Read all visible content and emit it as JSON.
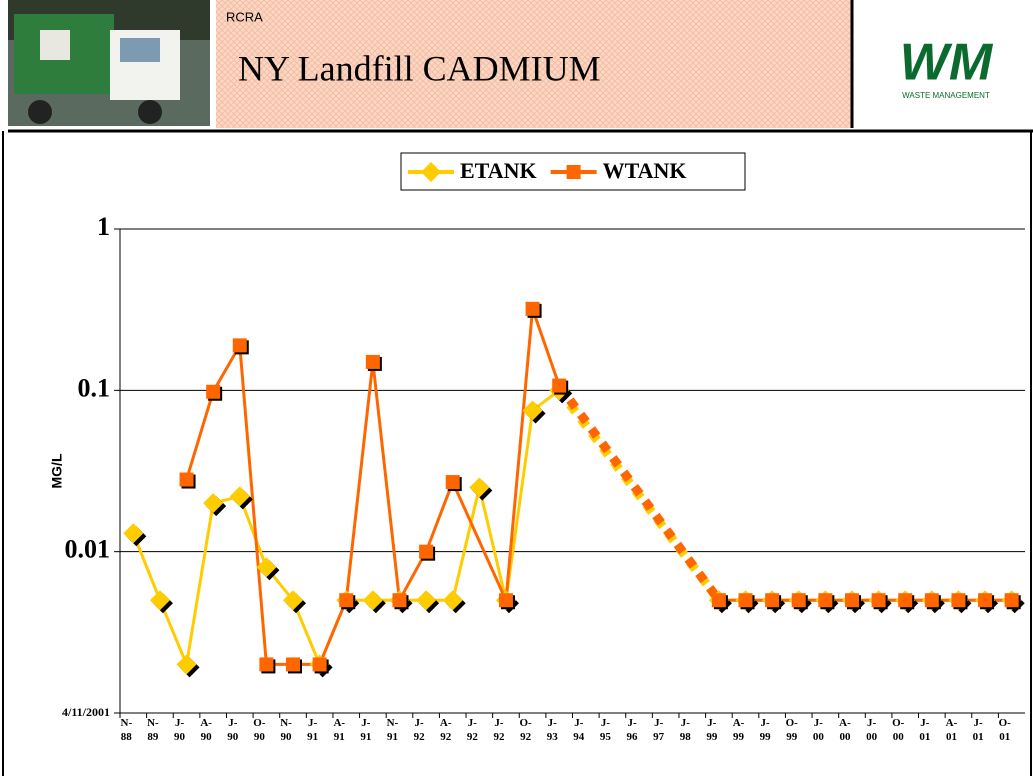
{
  "header": {
    "tag": "RCRA",
    "title": "NY Landfill CADMIUM",
    "logo_text": "WM",
    "logo_subtext": "WASTE MANAGEMENT"
  },
  "chart_data": {
    "type": "line",
    "y_label": "MG/L",
    "log_scale": true,
    "grid": true,
    "legend": "top",
    "categories": [
      "N-88",
      "N-89",
      "J-90",
      "A-90",
      "J-90",
      "O-90",
      "N-90",
      "J-91",
      "A-91",
      "J-91",
      "N-91",
      "J-92",
      "A-92",
      "J-92",
      "J-92",
      "O-92",
      "J-93",
      "J-94",
      "J-95",
      "J-96",
      "J-97",
      "J-98",
      "J-99",
      "A-99",
      "J-99",
      "O-99",
      "J-00",
      "A-00",
      "J-00",
      "O-00",
      "J-01",
      "A-01",
      "J-01",
      "O-01"
    ],
    "series": [
      {
        "name": "ETANK",
        "color": "#ffcc00",
        "marker": "diamond",
        "values": [
          0.013,
          0.005,
          0.002,
          0.02,
          0.022,
          0.008,
          0.005,
          0.002,
          0.005,
          0.005,
          0.005,
          0.005,
          0.005,
          0.025,
          0.005,
          0.075,
          0.1,
          null,
          null,
          null,
          null,
          null,
          0.005,
          0.005,
          0.005,
          0.005,
          0.005,
          0.005,
          0.005,
          0.005,
          0.005,
          0.005,
          0.005,
          0.005
        ]
      },
      {
        "name": "WTANK",
        "color": "#ff6600",
        "marker": "square",
        "values": [
          null,
          null,
          0.028,
          0.098,
          0.19,
          0.002,
          0.002,
          0.002,
          0.005,
          0.15,
          0.005,
          0.01,
          0.027,
          null,
          0.005,
          0.32,
          0.107,
          null,
          null,
          null,
          null,
          null,
          0.005,
          0.005,
          0.005,
          0.005,
          0.005,
          0.005,
          0.005,
          0.005,
          0.005,
          0.005,
          0.005,
          0.005
        ]
      }
    ],
    "ylim": [
      0.001,
      1
    ],
    "yticks": [
      {
        "value": 0.001,
        "label": "4/11/2001"
      },
      0.01,
      0.1,
      1
    ]
  }
}
